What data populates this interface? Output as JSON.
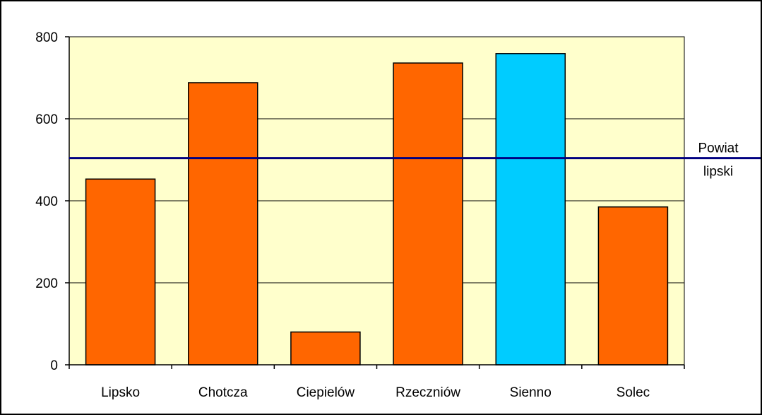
{
  "chart_data": {
    "type": "bar",
    "categories": [
      "Lipsko",
      "Chotcza",
      "Ciepielów",
      "Rzeczniów",
      "Sienno",
      "Solec"
    ],
    "values": [
      453,
      688,
      80,
      736,
      759,
      385
    ],
    "highlight_index": 4,
    "ylim": [
      0,
      800
    ],
    "yticks": [
      0,
      200,
      400,
      600,
      800
    ],
    "grid": true,
    "reference_line": {
      "value": 504,
      "label_lines": [
        "Powiat",
        "lipski"
      ]
    },
    "colors": {
      "bar": "#FF6600",
      "bar_highlight": "#00CCFF",
      "plot_background": "#FFFFCC",
      "reference_line": "#000080",
      "grid": "#000000",
      "bar_outline": "#000000"
    },
    "title": "",
    "xlabel": "",
    "ylabel": ""
  }
}
